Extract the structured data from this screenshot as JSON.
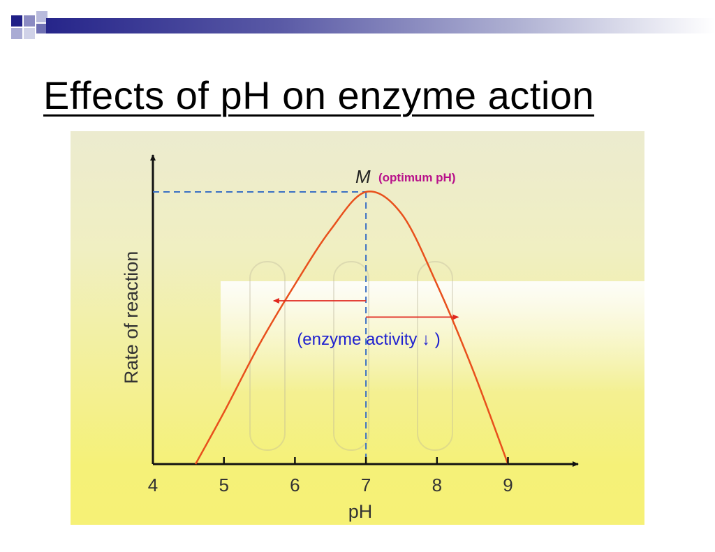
{
  "slide": {
    "title": "Effects of pH on enzyme action",
    "theme_colors": {
      "bar_dark": "#26258a",
      "bar_light": "#ffffff",
      "squares": "#2d2d8f"
    }
  },
  "chart_data": {
    "type": "line",
    "title": "",
    "xlabel": "pH",
    "ylabel": "Rate of reaction",
    "xlim": [
      4,
      9.5
    ],
    "ylim": [
      0,
      1.05
    ],
    "x_ticks": [
      "4",
      "5",
      "6",
      "7",
      "8",
      "9"
    ],
    "grid": false,
    "legend": "none",
    "series": [
      {
        "color": "#e8501c",
        "x": [
          4.6,
          5.0,
          5.5,
          6.0,
          6.5,
          7.0,
          7.5,
          8.0,
          8.5,
          9.0
        ],
        "y": [
          0.0,
          0.19,
          0.44,
          0.66,
          0.86,
          1.0,
          0.92,
          0.66,
          0.35,
          0.0
        ]
      }
    ],
    "peak": {
      "x": 7.0,
      "y": 1.0
    },
    "annotations": {
      "peak_label": "M",
      "optimum_label": "(optimum pH)",
      "activity_label": "(enzyme activity ↓ )",
      "colors": {
        "optimum": "#b8108a",
        "activity": "#1d1fcf",
        "arrows": "#e0281e",
        "guides": "#3a6fc4"
      }
    },
    "arrows": [
      {
        "from_x": 7.0,
        "to_x": 5.7,
        "y": 0.6
      },
      {
        "from_x": 7.0,
        "to_x": 8.3,
        "y": 0.54
      }
    ]
  }
}
